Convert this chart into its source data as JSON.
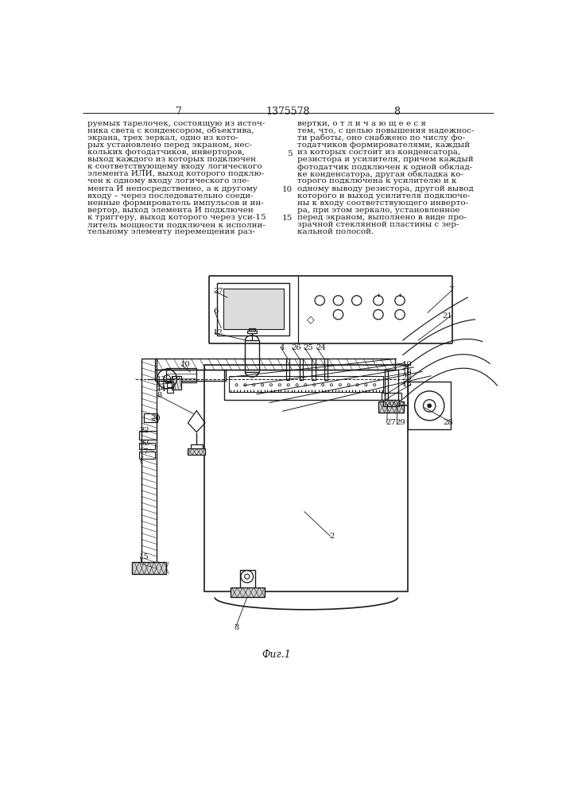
{
  "page_numbers": [
    "7",
    "8"
  ],
  "patent_number": "1375578",
  "figure_label": "Фиг.1",
  "bg_color": "#ffffff",
  "line_color": "#1a1a1a",
  "text_color": "#1a1a1a",
  "left_lines": [
    "руемых тарелочек, состоящую из источ-",
    "ника света с конденсором, объектива,",
    "экрана, трех зеркал, одно из кото-",
    "рых установлено перед экраном, нес-",
    "кольких фотодатчиков, инверторов,",
    "выход каждого из которых подключен",
    "к соответствующему входу логического",
    "элемента ИЛИ, выход которого подклю-",
    "чен к одному входу логического эле-",
    "мента И непосредственно, а к другому",
    "входу – через последовательно соеди-",
    "ненные формирователь импульсов и ин-",
    "вертор, выход элемента И подключен",
    "к триггеру, выход которого через уси-15",
    "литель мощности подключен к исполни-",
    "тельному элементу перемещения раз-"
  ],
  "right_lines": [
    "вертки, о т л и ч а ю щ е е с я",
    "тем, что, с целью повышения надежнос-",
    "ти работы, оно снабжено по числу фо-",
    "тодатчиков формирователями, каждый",
    "из которых состоит из конденсатора,",
    "резистора и усилителя, причем каждый",
    "фотодатчик подключен к одной обклад-",
    "ке конденсатора, другая обкладка ко-",
    "торого подключена к усилителю и к",
    "одному выводу резистора, другой вывод",
    "которого и выход усилителя подключе-",
    "ны к входу соответствующего инверто-",
    "ра, при этом зеркало, установленное",
    "перед экраном, выполнено в виде про-",
    "зрачной стеклянной пластины с зер-",
    "кальной полосой."
  ]
}
